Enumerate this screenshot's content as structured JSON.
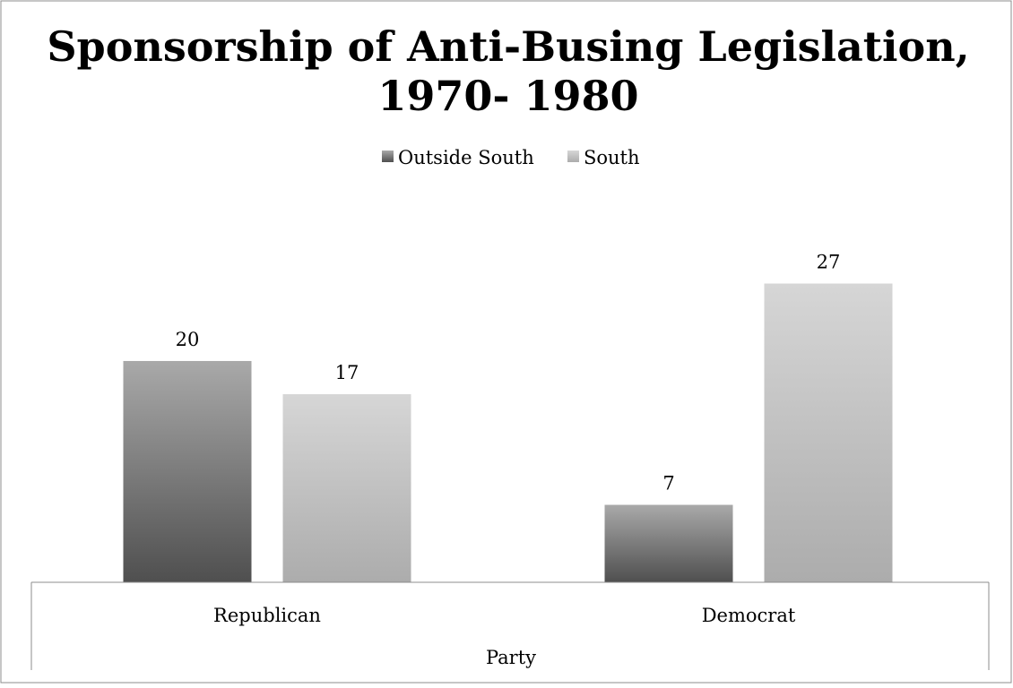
{
  "chart_data": {
    "type": "bar",
    "title_lines": [
      "Sponsorship of Anti-Busing Legislation,",
      "1970- 1980"
    ],
    "categories": [
      "Republican",
      "Democrat"
    ],
    "series": [
      {
        "name": "Outside South",
        "values": [
          20,
          7
        ]
      },
      {
        "name": "South",
        "values": [
          17,
          27
        ]
      }
    ],
    "xlabel": "Party",
    "ylabel": "",
    "ylim": [
      0,
      37
    ],
    "grid": false,
    "legend_position": "top",
    "data_labels": true,
    "colors": {
      "outside_south": [
        "#a9a9a9",
        "#4f4f4f"
      ],
      "south": [
        "#d6d6d6",
        "#acacac"
      ]
    }
  }
}
